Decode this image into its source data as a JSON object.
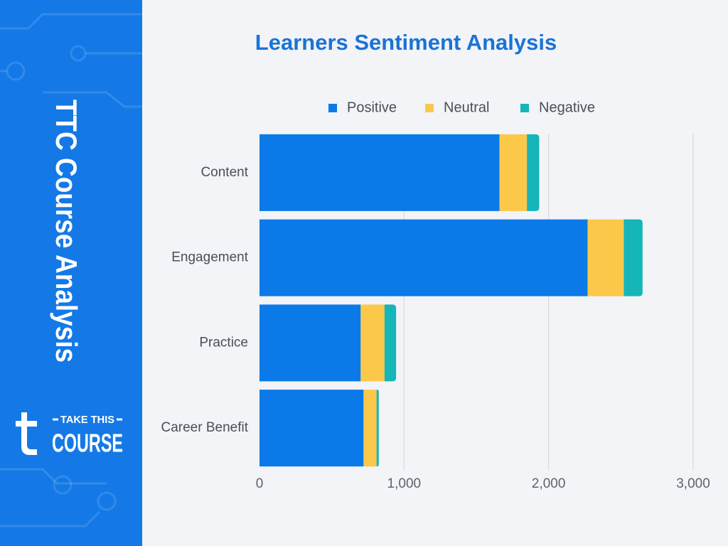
{
  "sidebar": {
    "title": "TTC Course Analysis",
    "logo_top": "TAKE THIS",
    "logo_bottom": "COURSE"
  },
  "chart_data": {
    "type": "bar",
    "orientation": "horizontal",
    "stacked": true,
    "title": "Learners Sentiment Analysis",
    "categories": [
      "Content",
      "Engagement",
      "Practice",
      "Career Benefit"
    ],
    "series": [
      {
        "name": "Positive",
        "color": "#0b7ae8",
        "values": [
          1660,
          2270,
          700,
          720
        ]
      },
      {
        "name": "Neutral",
        "color": "#fcc84a",
        "values": [
          190,
          250,
          165,
          90
        ]
      },
      {
        "name": "Negative",
        "color": "#15b5b8",
        "values": [
          85,
          130,
          80,
          15
        ]
      }
    ],
    "xlim": [
      0,
      3000
    ],
    "xticks": [
      0,
      {
        "value": 1000,
        "label": "1,000"
      },
      {
        "value": 2000,
        "label": "2,000"
      },
      {
        "value": 3000,
        "label": "3,000"
      }
    ],
    "grid": true,
    "legend": "top"
  }
}
